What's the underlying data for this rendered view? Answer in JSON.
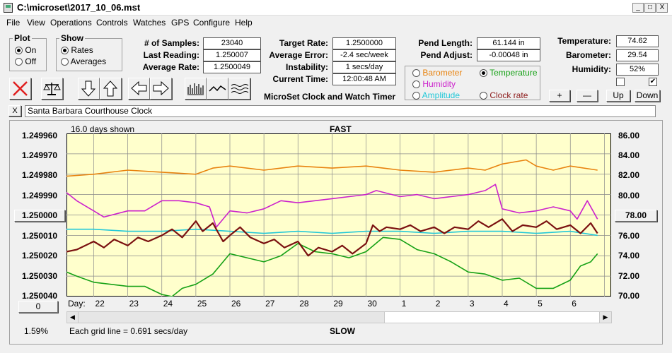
{
  "window": {
    "title": "C:\\microset\\2017_10_06.mst",
    "min": "_",
    "max": "□",
    "close": "X"
  },
  "menu": [
    "File",
    "View",
    "Operations",
    "Controls",
    "Watches",
    "GPS",
    "Configure",
    "Help"
  ],
  "plot_group": {
    "legend": "Plot",
    "options": [
      "On",
      "Off"
    ],
    "selected": "On"
  },
  "show_group": {
    "legend": "Show",
    "options": [
      "Rates",
      "Averages"
    ],
    "selected": "Rates"
  },
  "stats_left": [
    {
      "label": "# of Samples:",
      "value": "23040"
    },
    {
      "label": "Last Reading:",
      "value": "1.250007"
    },
    {
      "label": "Average Rate:",
      "value": "1.2500049"
    }
  ],
  "stats_mid": [
    {
      "label": "Target Rate:",
      "value": "1.2500000"
    },
    {
      "label": "Average Error:",
      "value": "-2.4 sec/week"
    },
    {
      "label": "Instability:",
      "value": "1 secs/day"
    },
    {
      "label": "Current Time:",
      "value": "12:00:48 AM"
    }
  ],
  "app_caption": "MicroSet Clock and Watch Timer",
  "pend": [
    {
      "label": "Pend Length:",
      "value": "61.144 in"
    },
    {
      "label": "Pend Adjust:",
      "value": "-0.00048 in"
    }
  ],
  "env": [
    {
      "label": "Temperature:",
      "value": "74.62"
    },
    {
      "label": "Barometer:",
      "value": "29.54"
    },
    {
      "label": "Humidity:",
      "value": "52%"
    }
  ],
  "env_checks": [
    false,
    true
  ],
  "aux_options": [
    {
      "label": "Barometer",
      "color": "#e8830f",
      "selected": false
    },
    {
      "label": "Temperature",
      "color": "#16a116",
      "selected": true
    },
    {
      "label": "Humidity",
      "color": "#cc22cc",
      "selected": false
    },
    {
      "label": "Clock rate",
      "color": "#8b1a1a",
      "selected": false
    },
    {
      "label": "Amplitude",
      "color": "#22c8d8",
      "selected": false
    }
  ],
  "small_buttons": [
    "+",
    "—",
    "Up",
    "Down"
  ],
  "toolbar_icons": [
    "stop-icon",
    "balance-scale-icon",
    "arrow-down-icon",
    "arrow-up-icon",
    "arrow-left-icon",
    "arrow-right-icon",
    "histogram-icon",
    "wave-icon",
    "multi-wave-icon"
  ],
  "clock_name": "Santa Barbara Courthouse Clock",
  "clock_close": "X",
  "chart_header": {
    "days_shown": "16.0 days shown",
    "top_label": "FAST",
    "bottom_label": "SLOW",
    "grid_note": "Each grid line = 0.691 secs/day",
    "day_prefix": "Day:",
    "percent": "1.59%",
    "left_button": "1.250000",
    "right_button": "78.00",
    "bottom_button": "0"
  },
  "chart_data": {
    "type": "line",
    "x_ticks": [
      "22",
      "23",
      "24",
      "25",
      "26",
      "27",
      "28",
      "29",
      "30",
      "1",
      "2",
      "3",
      "4",
      "5",
      "6"
    ],
    "y_left_ticks": [
      "1.249960",
      "1.249970",
      "1.249980",
      "1.249990",
      "1.250000",
      "1.250010",
      "1.250020",
      "1.250030",
      "1.250040"
    ],
    "y_left_range": [
      1.24996,
      1.25004
    ],
    "y_right_ticks": [
      "86.00",
      "84.00",
      "82.00",
      "80.00",
      "78.00",
      "76.00",
      "74.00",
      "72.00",
      "70.00"
    ],
    "y_right_range": [
      70,
      86
    ],
    "x_range": [
      21.2,
      37.2
    ],
    "series": [
      {
        "color": "#e8830f",
        "axis": "left",
        "x": [
          21.2,
          22,
          23,
          24,
          25,
          25.5,
          26,
          27,
          28,
          29,
          30,
          30.5,
          31,
          32,
          33,
          33.5,
          34,
          34.7,
          35,
          35.5,
          36,
          36.8
        ],
        "y": [
          1.249981,
          1.24998,
          1.249978,
          1.249979,
          1.24998,
          1.249977,
          1.249976,
          1.249978,
          1.249976,
          1.249977,
          1.249976,
          1.249977,
          1.249978,
          1.249979,
          1.249977,
          1.249978,
          1.249975,
          1.249973,
          1.249976,
          1.249978,
          1.249976,
          1.249978
        ]
      },
      {
        "color": "#cc22cc",
        "axis": "left",
        "x": [
          21.2,
          21.5,
          22,
          22.3,
          23,
          23.5,
          24,
          24.5,
          25,
          25.4,
          25.6,
          26,
          26.5,
          27,
          27.5,
          28,
          29,
          30,
          30.3,
          31,
          31.5,
          32,
          32.5,
          33,
          33.5,
          33.8,
          34,
          34.5,
          35,
          35.5,
          36,
          36.2,
          36.5,
          36.8
        ],
        "y": [
          1.249989,
          1.249993,
          1.249998,
          1.250001,
          1.249998,
          1.249998,
          1.249993,
          1.249993,
          1.249994,
          1.249996,
          1.250006,
          1.249998,
          1.249999,
          1.249997,
          1.249993,
          1.249994,
          1.249992,
          1.24999,
          1.249988,
          1.249991,
          1.24999,
          1.249992,
          1.249991,
          1.24999,
          1.249988,
          1.249985,
          1.249997,
          1.249999,
          1.249998,
          1.249996,
          1.249998,
          1.250002,
          1.249993,
          1.250002
        ]
      },
      {
        "color": "#22c8d8",
        "axis": "left",
        "x": [
          21.2,
          22,
          23,
          24,
          25,
          26,
          27,
          28,
          29,
          30,
          31,
          32,
          33,
          34,
          35,
          36,
          36.8
        ],
        "y": [
          1.250007,
          1.250007,
          1.250008,
          1.250008,
          1.250007,
          1.250008,
          1.250009,
          1.250008,
          1.250009,
          1.250008,
          1.250008,
          1.250009,
          1.250008,
          1.250008,
          1.250009,
          1.250008,
          1.25001
        ]
      },
      {
        "color": "#16a116",
        "axis": "left",
        "x": [
          21.2,
          21.5,
          22,
          22.5,
          23,
          23.5,
          24,
          24.3,
          24.6,
          25,
          25.5,
          26,
          26.5,
          27,
          27.5,
          28,
          28.5,
          29,
          29.5,
          30,
          30.5,
          31,
          31.5,
          32,
          32.5,
          33,
          33.5,
          34,
          34.5,
          35,
          35.5,
          36,
          36.3,
          36.6,
          36.8
        ],
        "y": [
          1.250028,
          1.25003,
          1.250033,
          1.250034,
          1.250035,
          1.250035,
          1.250039,
          1.25004,
          1.250036,
          1.250034,
          1.250029,
          1.250019,
          1.250021,
          1.250023,
          1.25002,
          1.250014,
          1.250018,
          1.250019,
          1.250021,
          1.250018,
          1.250011,
          1.250012,
          1.250017,
          1.250019,
          1.250023,
          1.250028,
          1.250029,
          1.250032,
          1.250031,
          1.250036,
          1.250036,
          1.250032,
          1.250025,
          1.250023,
          1.250019
        ]
      },
      {
        "color": "#7a1010",
        "axis": "left",
        "x": [
          21.2,
          21.5,
          22,
          22.3,
          22.6,
          23,
          23.3,
          23.6,
          24,
          24.3,
          24.6,
          25,
          25.2,
          25.5,
          25.8,
          26,
          26.3,
          26.6,
          27,
          27.3,
          27.6,
          28,
          28.3,
          28.6,
          29,
          29.3,
          29.6,
          30,
          30.2,
          30.4,
          30.6,
          31,
          31.3,
          31.6,
          32,
          32.3,
          32.6,
          33,
          33.3,
          33.6,
          34,
          34.3,
          34.6,
          35,
          35.3,
          35.6,
          36,
          36.3,
          36.6,
          36.8
        ],
        "y": [
          1.250018,
          1.250017,
          1.250013,
          1.250016,
          1.250012,
          1.250015,
          1.250011,
          1.250013,
          1.25001,
          1.250007,
          1.250011,
          1.250003,
          1.250008,
          1.250004,
          1.250013,
          1.25001,
          1.250006,
          1.250011,
          1.250014,
          1.250012,
          1.250016,
          1.250013,
          1.25002,
          1.250016,
          1.250018,
          1.250015,
          1.250019,
          1.250014,
          1.250005,
          1.250008,
          1.250006,
          1.250007,
          1.250005,
          1.250008,
          1.250006,
          1.250009,
          1.250006,
          1.250007,
          1.250003,
          1.250006,
          1.250002,
          1.250008,
          1.250005,
          1.250006,
          1.250003,
          1.250007,
          1.250005,
          1.250009,
          1.250004,
          1.250009
        ]
      }
    ]
  }
}
